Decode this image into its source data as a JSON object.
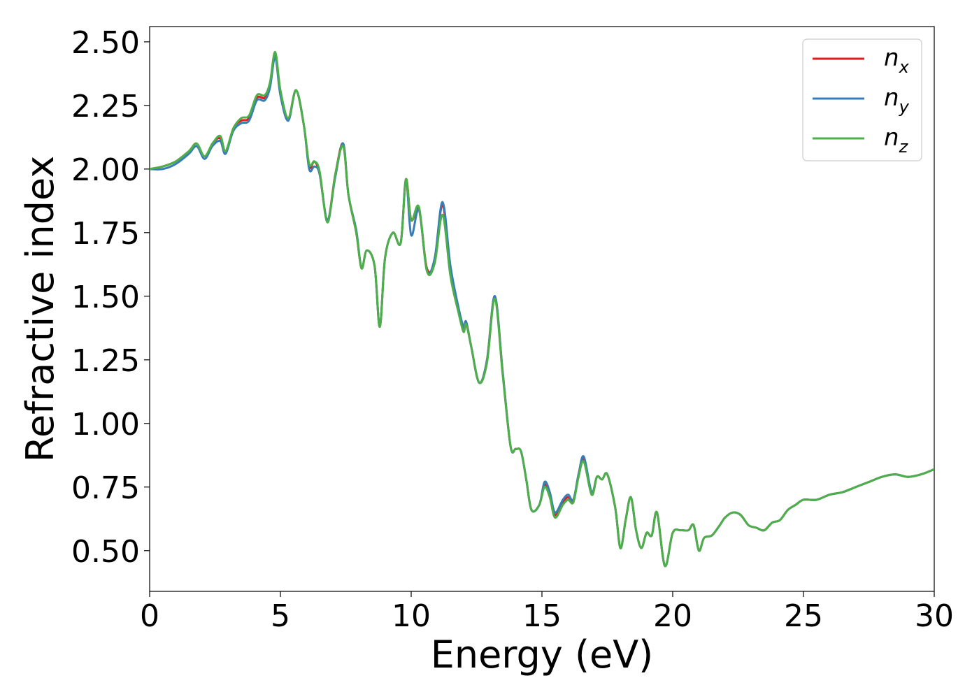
{
  "chart_data": {
    "type": "line",
    "xlabel": "Energy (eV)",
    "ylabel": "Refractive index",
    "xlim": [
      0,
      30
    ],
    "ylim": [
      0.34,
      2.56
    ],
    "xticks": [
      0,
      5,
      10,
      15,
      20,
      25,
      30
    ],
    "xtick_labels": [
      "0",
      "5",
      "10",
      "15",
      "20",
      "25",
      "30"
    ],
    "yticks": [
      0.5,
      0.75,
      1.0,
      1.25,
      1.5,
      1.75,
      2.0,
      2.25,
      2.5
    ],
    "ytick_labels": [
      "0.50",
      "0.75",
      "1.00",
      "1.25",
      "1.50",
      "1.75",
      "2.00",
      "2.25",
      "2.50"
    ],
    "grid": false,
    "legend_position": "top-right",
    "series": [
      {
        "name": "n",
        "subscript": "x",
        "color": "#e41a1c",
        "x": [
          0,
          0.5,
          1,
          1.5,
          1.8,
          2.1,
          2.4,
          2.7,
          2.9,
          3.2,
          3.5,
          3.8,
          4.1,
          4.4,
          4.6,
          4.8,
          5,
          5.3,
          5.6,
          5.9,
          6.1,
          6.3,
          6.5,
          6.8,
          7.1,
          7.4,
          7.6,
          7.9,
          8.1,
          8.3,
          8.6,
          8.8,
          9.0,
          9.3,
          9.6,
          9.8,
          10.0,
          10.3,
          10.6,
          10.9,
          11.2,
          11.5,
          11.8,
          12.0,
          12.1,
          12.3,
          12.6,
          12.9,
          13.2,
          13.5,
          13.8,
          14.0,
          14.2,
          14.4,
          14.6,
          14.9,
          15.1,
          15.3,
          15.5,
          15.8,
          16.0,
          16.2,
          16.4,
          16.6,
          16.9,
          17.1,
          17.3,
          17.5,
          17.8,
          18.0,
          18.2,
          18.4,
          18.6,
          18.8,
          19.0,
          19.2,
          19.4,
          19.7,
          20.0,
          20.3,
          20.6,
          20.8,
          21.0,
          21.2,
          21.5,
          21.8,
          22.0,
          22.3,
          22.6,
          22.9,
          23.2,
          23.5,
          23.8,
          24.1,
          24.4,
          24.7,
          25.0,
          25.5,
          26.0,
          26.5,
          27.0,
          27.5,
          28.0,
          28.5,
          29.0,
          29.5,
          30.0
        ],
        "y": [
          2.0,
          2.01,
          2.03,
          2.07,
          2.1,
          2.04,
          2.1,
          2.12,
          2.06,
          2.16,
          2.19,
          2.2,
          2.28,
          2.28,
          2.33,
          2.45,
          2.3,
          2.2,
          2.31,
          2.17,
          2.01,
          2.03,
          1.98,
          1.8,
          1.98,
          2.1,
          1.9,
          1.75,
          1.61,
          1.68,
          1.62,
          1.38,
          1.65,
          1.75,
          1.71,
          1.96,
          1.8,
          1.84,
          1.61,
          1.64,
          1.86,
          1.6,
          1.45,
          1.37,
          1.4,
          1.3,
          1.16,
          1.25,
          1.5,
          1.2,
          0.91,
          0.9,
          0.89,
          0.78,
          0.66,
          0.68,
          0.76,
          0.72,
          0.64,
          0.69,
          0.71,
          0.69,
          0.8,
          0.86,
          0.72,
          0.79,
          0.78,
          0.8,
          0.67,
          0.51,
          0.62,
          0.71,
          0.58,
          0.51,
          0.57,
          0.56,
          0.65,
          0.44,
          0.57,
          0.58,
          0.58,
          0.6,
          0.5,
          0.55,
          0.56,
          0.6,
          0.63,
          0.65,
          0.64,
          0.6,
          0.59,
          0.58,
          0.61,
          0.62,
          0.66,
          0.68,
          0.7,
          0.7,
          0.72,
          0.73,
          0.75,
          0.77,
          0.79,
          0.8,
          0.79,
          0.8,
          0.82
        ]
      },
      {
        "name": "n",
        "subscript": "y",
        "color": "#377eb8",
        "x": [
          0,
          0.5,
          1,
          1.5,
          1.8,
          2.1,
          2.4,
          2.7,
          2.9,
          3.2,
          3.5,
          3.8,
          4.1,
          4.4,
          4.6,
          4.8,
          5,
          5.3,
          5.6,
          5.9,
          6.1,
          6.3,
          6.5,
          6.8,
          7.1,
          7.4,
          7.6,
          7.9,
          8.1,
          8.3,
          8.6,
          8.8,
          9.0,
          9.3,
          9.6,
          9.8,
          10.0,
          10.3,
          10.6,
          10.9,
          11.2,
          11.5,
          11.8,
          12.0,
          12.1,
          12.3,
          12.6,
          12.9,
          13.2,
          13.5,
          13.8,
          14.0,
          14.2,
          14.4,
          14.6,
          14.9,
          15.1,
          15.3,
          15.5,
          15.8,
          16.0,
          16.2,
          16.4,
          16.6,
          16.9,
          17.1,
          17.3,
          17.5,
          17.8,
          18.0,
          18.2,
          18.4,
          18.6,
          18.8,
          19.0,
          19.2,
          19.4,
          19.7,
          20.0,
          20.3,
          20.6,
          20.8,
          21.0,
          21.2,
          21.5,
          21.8,
          22.0,
          22.3,
          22.6,
          22.9,
          23.2,
          23.5,
          23.8,
          24.1,
          24.4,
          24.7,
          25.0,
          25.5,
          26.0,
          26.5,
          27.0,
          27.5,
          28.0,
          28.5,
          29.0,
          29.5,
          30.0
        ],
        "y": [
          2.0,
          2.0,
          2.02,
          2.06,
          2.09,
          2.04,
          2.09,
          2.11,
          2.06,
          2.15,
          2.18,
          2.19,
          2.27,
          2.27,
          2.32,
          2.44,
          2.29,
          2.19,
          2.31,
          2.17,
          2.0,
          2.01,
          1.98,
          1.8,
          1.97,
          2.1,
          1.9,
          1.76,
          1.61,
          1.68,
          1.62,
          1.38,
          1.65,
          1.75,
          1.71,
          1.96,
          1.74,
          1.84,
          1.6,
          1.65,
          1.87,
          1.62,
          1.46,
          1.38,
          1.4,
          1.3,
          1.16,
          1.25,
          1.5,
          1.2,
          0.91,
          0.9,
          0.89,
          0.78,
          0.66,
          0.68,
          0.77,
          0.73,
          0.65,
          0.7,
          0.72,
          0.7,
          0.8,
          0.87,
          0.73,
          0.79,
          0.78,
          0.8,
          0.67,
          0.51,
          0.62,
          0.71,
          0.58,
          0.51,
          0.57,
          0.56,
          0.65,
          0.44,
          0.57,
          0.58,
          0.58,
          0.6,
          0.5,
          0.55,
          0.56,
          0.6,
          0.63,
          0.65,
          0.64,
          0.6,
          0.59,
          0.58,
          0.61,
          0.62,
          0.66,
          0.68,
          0.7,
          0.7,
          0.72,
          0.73,
          0.75,
          0.77,
          0.79,
          0.8,
          0.79,
          0.8,
          0.82
        ]
      },
      {
        "name": "n",
        "subscript": "z",
        "color": "#4daf4a",
        "x": [
          0,
          0.5,
          1,
          1.5,
          1.8,
          2.1,
          2.4,
          2.7,
          2.9,
          3.2,
          3.5,
          3.8,
          4.1,
          4.4,
          4.6,
          4.8,
          5,
          5.3,
          5.6,
          5.9,
          6.1,
          6.3,
          6.5,
          6.8,
          7.1,
          7.4,
          7.6,
          7.9,
          8.1,
          8.3,
          8.6,
          8.8,
          9.0,
          9.3,
          9.6,
          9.8,
          10.0,
          10.3,
          10.6,
          10.9,
          11.2,
          11.5,
          11.8,
          12.0,
          12.1,
          12.3,
          12.6,
          12.9,
          13.2,
          13.5,
          13.8,
          14.0,
          14.2,
          14.4,
          14.6,
          14.9,
          15.1,
          15.3,
          15.5,
          15.8,
          16.0,
          16.2,
          16.4,
          16.6,
          16.9,
          17.1,
          17.3,
          17.5,
          17.8,
          18.0,
          18.2,
          18.4,
          18.6,
          18.8,
          19.0,
          19.2,
          19.4,
          19.7,
          20.0,
          20.3,
          20.6,
          20.8,
          21.0,
          21.2,
          21.5,
          21.8,
          22.0,
          22.3,
          22.6,
          22.9,
          23.2,
          23.5,
          23.8,
          24.1,
          24.4,
          24.7,
          25.0,
          25.5,
          26.0,
          26.5,
          27.0,
          27.5,
          28.0,
          28.5,
          29.0,
          29.5,
          30.0
        ],
        "y": [
          2.0,
          2.01,
          2.03,
          2.07,
          2.1,
          2.05,
          2.1,
          2.13,
          2.07,
          2.16,
          2.2,
          2.21,
          2.29,
          2.29,
          2.34,
          2.46,
          2.31,
          2.2,
          2.31,
          2.17,
          2.02,
          2.03,
          1.99,
          1.79,
          1.98,
          2.09,
          1.9,
          1.75,
          1.61,
          1.68,
          1.62,
          1.38,
          1.65,
          1.75,
          1.71,
          1.96,
          1.8,
          1.85,
          1.6,
          1.63,
          1.82,
          1.58,
          1.44,
          1.36,
          1.39,
          1.3,
          1.16,
          1.24,
          1.49,
          1.19,
          0.91,
          0.9,
          0.89,
          0.78,
          0.66,
          0.68,
          0.75,
          0.71,
          0.63,
          0.68,
          0.7,
          0.69,
          0.79,
          0.85,
          0.72,
          0.79,
          0.78,
          0.8,
          0.67,
          0.51,
          0.62,
          0.71,
          0.58,
          0.51,
          0.57,
          0.56,
          0.65,
          0.44,
          0.57,
          0.58,
          0.58,
          0.6,
          0.5,
          0.55,
          0.56,
          0.6,
          0.63,
          0.65,
          0.64,
          0.6,
          0.59,
          0.58,
          0.61,
          0.62,
          0.66,
          0.68,
          0.7,
          0.7,
          0.72,
          0.73,
          0.75,
          0.77,
          0.79,
          0.8,
          0.79,
          0.8,
          0.82
        ]
      }
    ]
  }
}
